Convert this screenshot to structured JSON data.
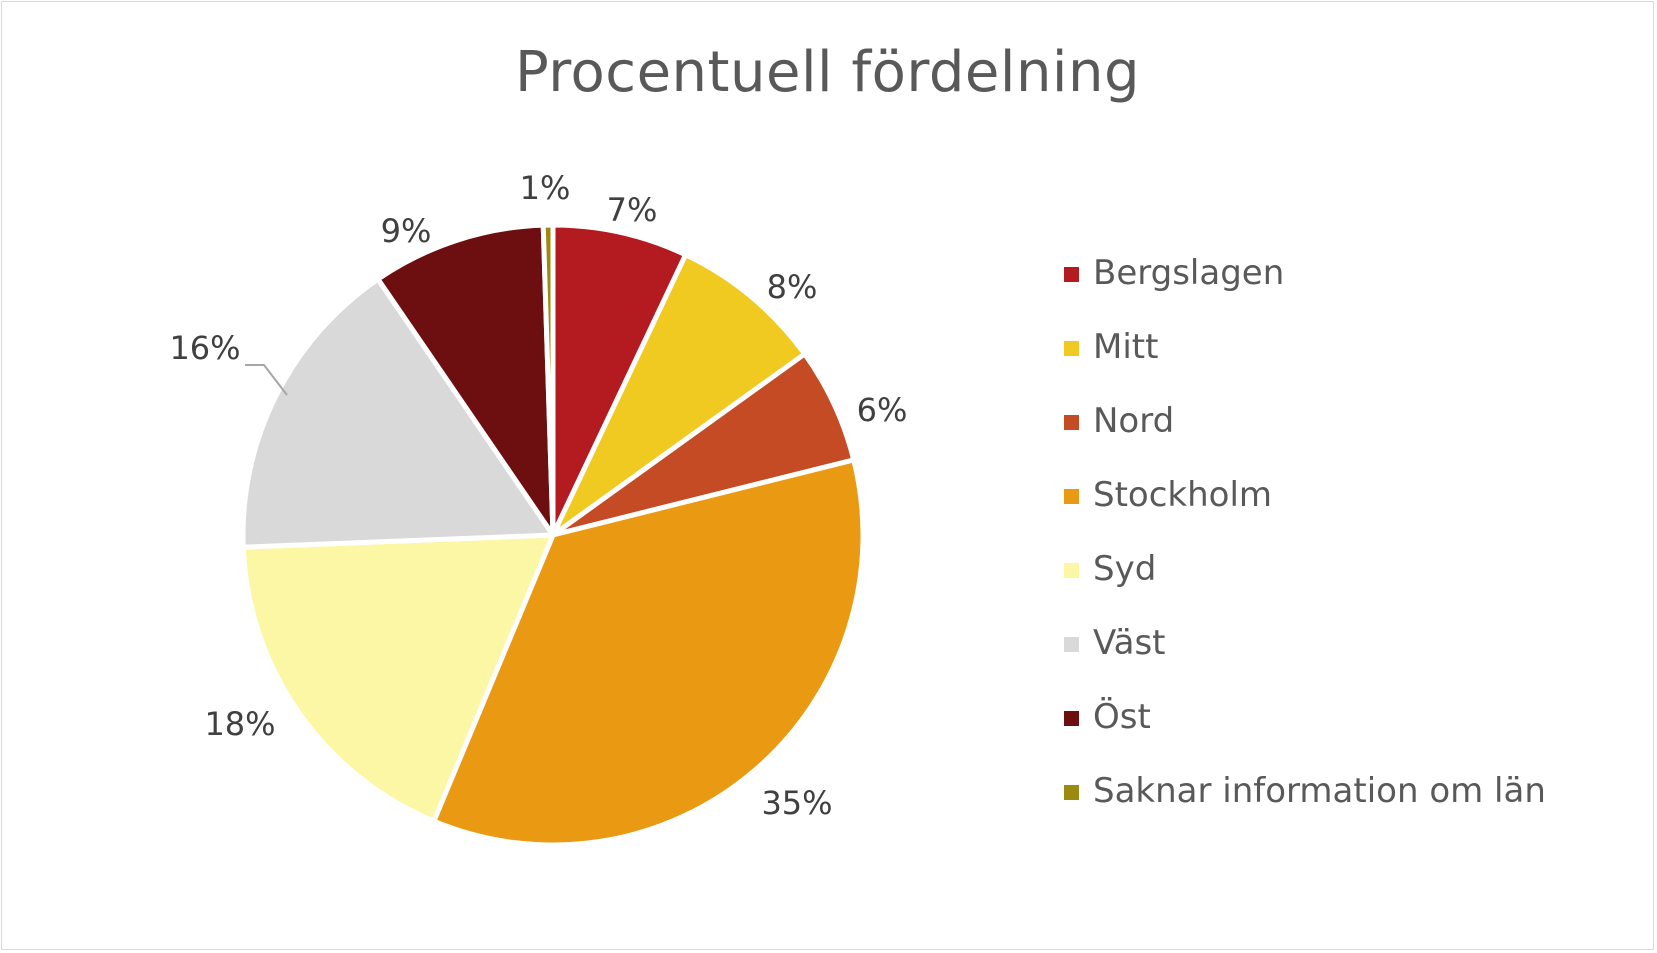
{
  "chart_data": {
    "type": "pie",
    "title": "Procentuell fördelning",
    "slices": [
      {
        "name": "Bergslagen",
        "value": 7,
        "label": "7%",
        "color": "#b41b20"
      },
      {
        "name": "Mitt",
        "value": 8,
        "label": "8%",
        "color": "#f0ca20"
      },
      {
        "name": "Nord",
        "value": 6,
        "label": "6%",
        "color": "#c54b24"
      },
      {
        "name": "Stockholm",
        "value": 35,
        "label": "35%",
        "color": "#ea9a12"
      },
      {
        "name": "Syd",
        "value": 18,
        "label": "18%",
        "color": "#fcf7a4"
      },
      {
        "name": "Väst",
        "value": 16,
        "label": "16%",
        "color": "#d9d9d9"
      },
      {
        "name": "Öst",
        "value": 9,
        "label": "9%",
        "color": "#6d0f11"
      },
      {
        "name": "Saknar information om län",
        "value": 0.5,
        "label": "1%",
        "color": "#9c8a10"
      }
    ],
    "legend_position": "right",
    "start_angle": "12 o'clock",
    "direction": "clockwise"
  }
}
